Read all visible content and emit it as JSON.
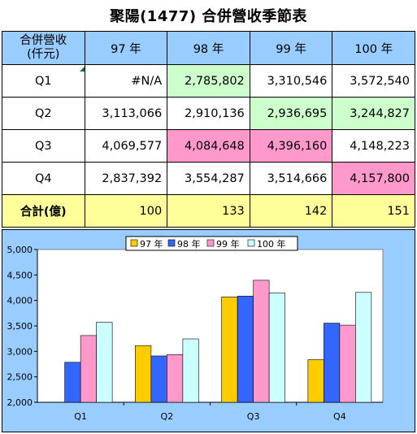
{
  "title": "聚陽(1477) 合併營收季節表",
  "table": {
    "corner_label_line1": "合併營收",
    "corner_label_line2": "(仟元)",
    "headers": [
      "97 年",
      "98 年",
      "99 年",
      "100 年"
    ],
    "rows": [
      {
        "label": "Q1",
        "cells": [
          "#N/A",
          "2,785,802",
          "3,310,546",
          "3,572,540"
        ]
      },
      {
        "label": "Q2",
        "cells": [
          "3,113,066",
          "2,910,136",
          "2,936,695",
          "3,244,827"
        ]
      },
      {
        "label": "Q3",
        "cells": [
          "4,069,577",
          "4,084,648",
          "4,396,160",
          "4,148,223"
        ]
      },
      {
        "label": "Q4",
        "cells": [
          "2,837,392",
          "3,554,287",
          "3,514,666",
          "4,157,800"
        ]
      }
    ],
    "total": {
      "label": "合計(億)",
      "cells": [
        "100",
        "133",
        "142",
        "151"
      ]
    },
    "highlight_colors": {
      "green": "#ccffcc",
      "pink": "#ff99cc",
      "header": "#99ccff",
      "total": "#ffff99"
    }
  },
  "chart_data": {
    "type": "bar",
    "categories": [
      "Q1",
      "Q2",
      "Q3",
      "Q4"
    ],
    "series": [
      {
        "name": "97 年",
        "color": "#ffcc00",
        "values": [
          null,
          3113.066,
          4069.577,
          2837.392
        ]
      },
      {
        "name": "98 年",
        "color": "#3366ff",
        "values": [
          2785.802,
          2910.136,
          4084.648,
          3554.287
        ]
      },
      {
        "name": "99 年",
        "color": "#ff99cc",
        "values": [
          3310.546,
          2936.695,
          4396.16,
          3514.666
        ]
      },
      {
        "name": "100 年",
        "color": "#ccffff",
        "values": [
          3572.54,
          3244.827,
          4148.223,
          4157.8
        ]
      }
    ],
    "ylim": [
      2000,
      5000
    ],
    "yticks": [
      2000,
      2500,
      3000,
      3500,
      4000,
      4500,
      5000
    ],
    "ytick_labels": [
      "2,000",
      "2,500",
      "3,000",
      "3,500",
      "4,000",
      "4,500",
      "5,000"
    ],
    "grid": false,
    "legend": "top-center",
    "plot_background": "#ffffff",
    "chart_background": "#99ccff"
  }
}
